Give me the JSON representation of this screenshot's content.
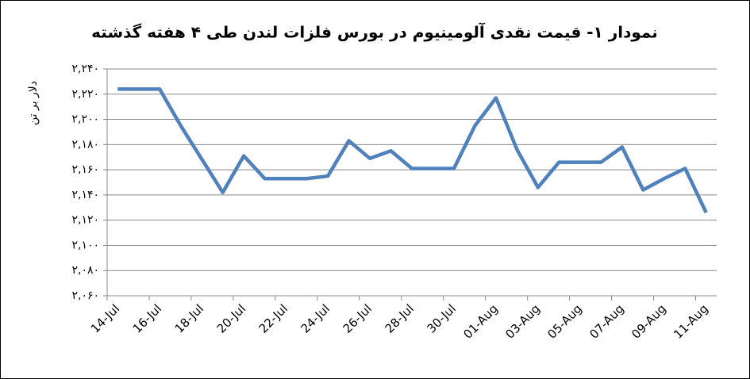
{
  "chart_data": {
    "type": "line",
    "title": "نمودار ۱- قیمت نقدی آلومینیوم در بورس فلزات لندن طی ۴ هفته گذشته",
    "y_label": "دلار بر تن",
    "x": [
      "14-Jul",
      "16-Jul",
      "17-Jul",
      "19-Jul",
      "20-Jul",
      "21-Jul",
      "23-Jul",
      "24-Jul",
      "25-Jul",
      "26-Jul",
      "27-Jul",
      "28-Jul",
      "30-Jul",
      "31-Jul",
      "01-Aug",
      "02-Aug",
      "03-Aug",
      "04-Aug",
      "06-Aug",
      "07-Aug",
      "08-Aug",
      "09-Aug",
      "10-Aug",
      "11-Aug"
    ],
    "values": [
      2224,
      2224,
      2195,
      2142,
      2171,
      2153,
      2153,
      2155,
      2183,
      2169,
      2175,
      2161,
      2161,
      2195,
      2217,
      2176,
      2146,
      2166,
      2166,
      2178,
      2144,
      2153,
      2161,
      2126
    ],
    "color": "#4f81bd",
    "xlim": [
      "14-Jul",
      "11-Aug"
    ],
    "xticks": [
      "14-Jul",
      "16-Jul",
      "18-Jul",
      "20-Jul",
      "22-Jul",
      "24-Jul",
      "26-Jul",
      "28-Jul",
      "30-Jul",
      "01-Aug",
      "03-Aug",
      "05-Aug",
      "07-Aug",
      "09-Aug",
      "11-Aug"
    ],
    "ylim": [
      2060,
      2240
    ],
    "yticks": [
      {
        "value": 2060,
        "label": "۲,۰۶۰"
      },
      {
        "value": 2080,
        "label": "۲,۰۸۰"
      },
      {
        "value": 2100,
        "label": "۲,۱۰۰"
      },
      {
        "value": 2120,
        "label": "۲,۱۲۰"
      },
      {
        "value": 2140,
        "label": "۲,۱۴۰"
      },
      {
        "value": 2160,
        "label": "۲,۱۶۰"
      },
      {
        "value": 2180,
        "label": "۲,۱۸۰"
      },
      {
        "value": 2200,
        "label": "۲,۲۰۰"
      },
      {
        "value": 2220,
        "label": "۲,۲۲۰"
      },
      {
        "value": 2240,
        "label": "۲,۲۴۰"
      }
    ],
    "grid": true
  }
}
